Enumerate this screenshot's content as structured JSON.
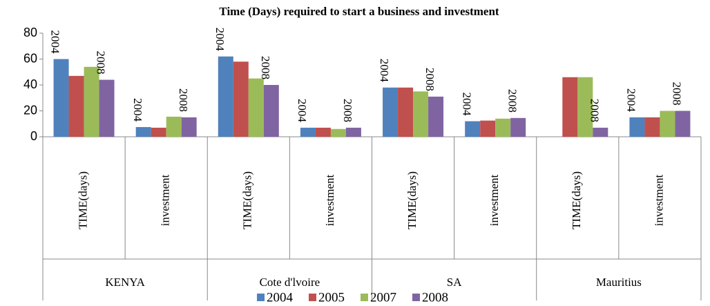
{
  "chart_data": {
    "type": "bar",
    "title": "Time (Days) required to start a business and investment",
    "groups": [
      "KENYA",
      "Cote d'lvoire",
      "SA",
      "Mauritius"
    ],
    "categories": [
      "TIME(days)",
      "investment",
      "TIME(days)",
      "investment",
      "TIME(days)",
      "investment",
      "TIME(days)",
      "investment"
    ],
    "series": [
      {
        "name": "2004",
        "color": "#4f81bd",
        "values": [
          60,
          7.5,
          62,
          7,
          38,
          12,
          null,
          15
        ]
      },
      {
        "name": "2005",
        "color": "#c0504d",
        "values": [
          47,
          7,
          58,
          7,
          38,
          12.5,
          46,
          15
        ]
      },
      {
        "name": "2007",
        "color": "#9bbb59",
        "values": [
          54,
          15.5,
          45,
          6,
          35,
          14,
          46,
          20
        ]
      },
      {
        "name": "2008",
        "color": "#8064a2",
        "values": [
          44,
          15,
          40,
          7,
          31,
          14.5,
          7,
          20
        ]
      }
    ],
    "labeled_series": [
      0,
      3
    ],
    "ylim": [
      0,
      80
    ],
    "yticks": [
      0,
      20,
      40,
      60,
      80
    ],
    "legend": "bottom"
  }
}
